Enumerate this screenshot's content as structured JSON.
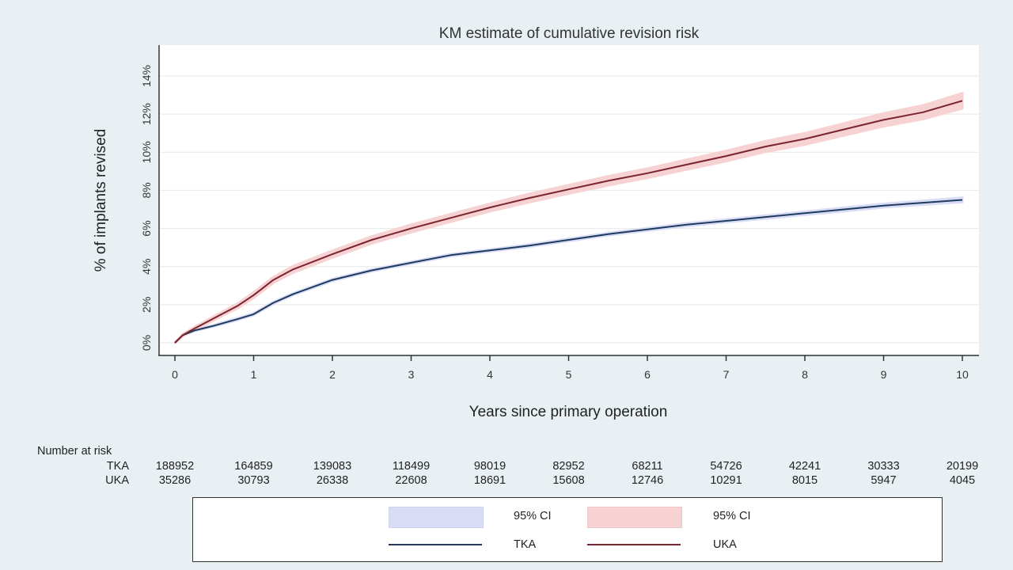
{
  "chart_data": {
    "type": "line",
    "title": "KM estimate of cumulative revision risk",
    "xlabel": "Years since primary operation",
    "ylabel": "% of implants revised",
    "xlim": [
      0,
      10
    ],
    "ylim": [
      0,
      15
    ],
    "x_ticks": [
      0,
      1,
      2,
      3,
      4,
      5,
      6,
      7,
      8,
      9,
      10
    ],
    "x_tick_labels": [
      "0",
      "1",
      "2",
      "3",
      "4",
      "5",
      "6",
      "7",
      "8",
      "9",
      "10"
    ],
    "y_ticks": [
      0,
      2,
      4,
      6,
      8,
      10,
      12,
      14
    ],
    "y_tick_labels": [
      "0%",
      "2%",
      "4%",
      "6%",
      "8%",
      "10%",
      "12%",
      "14%"
    ],
    "grid": true,
    "series": [
      {
        "name": "TKA",
        "color": "#1f3a5f",
        "ci_color": "#d8dcf5",
        "x": [
          0,
          0.1,
          0.25,
          0.5,
          0.8,
          1,
          1.25,
          1.5,
          2,
          2.5,
          3,
          3.5,
          4,
          4.5,
          5,
          5.5,
          6,
          6.5,
          7,
          7.5,
          8,
          8.5,
          9,
          9.5,
          10
        ],
        "y": [
          0,
          0.4,
          0.65,
          0.9,
          1.25,
          1.5,
          2.1,
          2.55,
          3.3,
          3.8,
          4.2,
          4.6,
          4.85,
          5.1,
          5.4,
          5.7,
          5.95,
          6.2,
          6.4,
          6.6,
          6.8,
          7.0,
          7.2,
          7.35,
          7.5
        ],
        "ci_halfwidth": [
          0,
          0.02,
          0.03,
          0.04,
          0.05,
          0.05,
          0.05,
          0.05,
          0.05,
          0.05,
          0.05,
          0.05,
          0.05,
          0.06,
          0.06,
          0.06,
          0.06,
          0.07,
          0.07,
          0.08,
          0.08,
          0.09,
          0.09,
          0.1,
          0.12
        ]
      },
      {
        "name": "UKA",
        "color": "#7a2430",
        "ci_color": "#f7d2d2",
        "x": [
          0,
          0.1,
          0.25,
          0.5,
          0.8,
          1,
          1.25,
          1.5,
          2,
          2.5,
          3,
          3.5,
          4,
          4.5,
          5,
          5.5,
          6,
          6.5,
          7,
          7.5,
          8,
          8.5,
          9,
          9.5,
          10
        ],
        "y": [
          0,
          0.4,
          0.75,
          1.3,
          1.95,
          2.5,
          3.3,
          3.85,
          4.65,
          5.4,
          6.0,
          6.55,
          7.1,
          7.6,
          8.05,
          8.5,
          8.9,
          9.35,
          9.8,
          10.3,
          10.7,
          11.2,
          11.7,
          12.1,
          12.7
        ],
        "ci_halfwidth": [
          0,
          0.05,
          0.08,
          0.1,
          0.12,
          0.15,
          0.15,
          0.17,
          0.18,
          0.18,
          0.2,
          0.2,
          0.2,
          0.22,
          0.22,
          0.24,
          0.24,
          0.26,
          0.27,
          0.28,
          0.3,
          0.32,
          0.34,
          0.36,
          0.4
        ]
      }
    ],
    "legend": {
      "placement": "bottom",
      "entries": [
        {
          "label": "95% CI",
          "kind": "area",
          "series": "TKA"
        },
        {
          "label": "95% CI",
          "kind": "area",
          "series": "UKA"
        },
        {
          "label": "TKA",
          "kind": "line",
          "series": "TKA"
        },
        {
          "label": "UKA",
          "kind": "line",
          "series": "UKA"
        }
      ]
    },
    "number_at_risk": {
      "title": "Number at risk",
      "rows": [
        {
          "label": "TKA",
          "values": [
            "188952",
            "164859",
            "139083",
            "118499",
            "98019",
            "82952",
            "68211",
            "54726",
            "42241",
            "30333",
            "20199"
          ]
        },
        {
          "label": "UKA",
          "values": [
            "35286",
            "30793",
            "26338",
            "22608",
            "18691",
            "15608",
            "12746",
            "10291",
            "8015",
            "5947",
            "4045"
          ]
        }
      ]
    }
  }
}
